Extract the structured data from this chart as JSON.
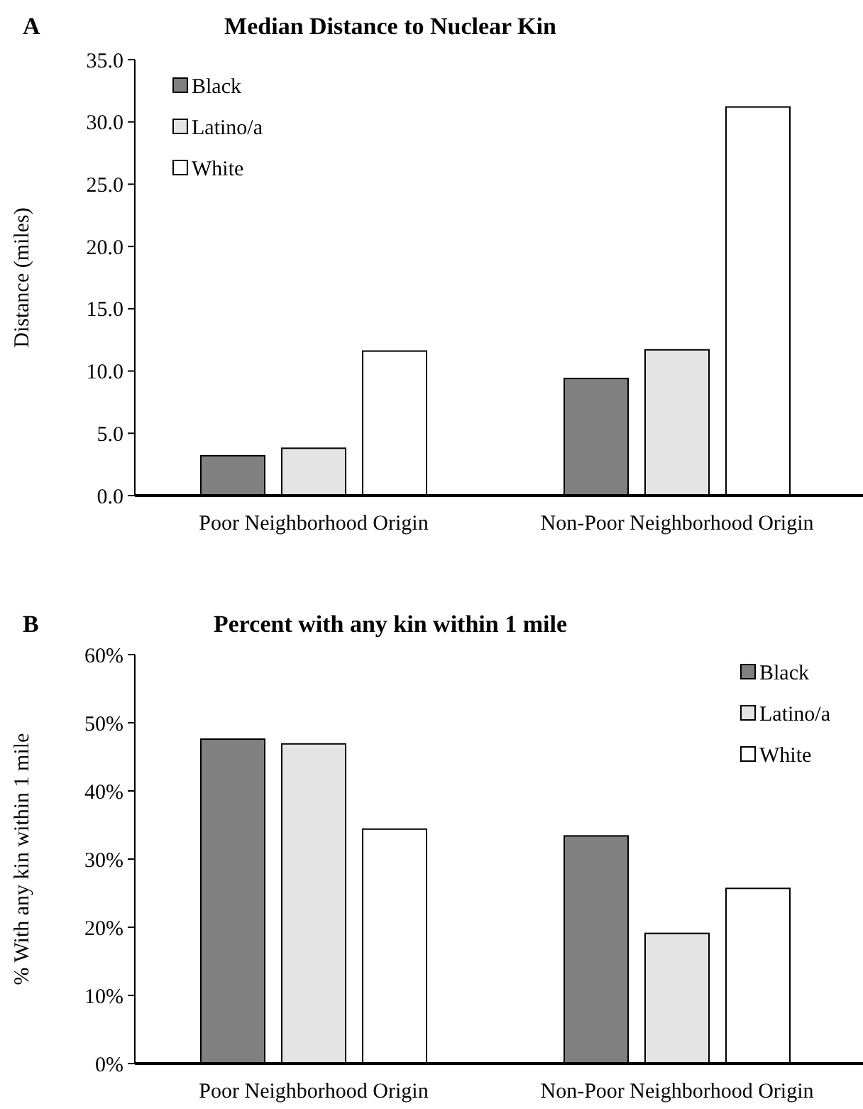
{
  "chart_data": [
    {
      "type": "bar",
      "title": "Median Distance to Nuclear Kin",
      "annotations": [
        "A"
      ],
      "ylabel": "Distance (miles)",
      "categories": [
        "Poor Neighborhood Origin",
        "Non-Poor Neighborhood Origin"
      ],
      "series": [
        {
          "name": "Black",
          "color": "#808080",
          "values": [
            3.2,
            9.4
          ]
        },
        {
          "name": "Latino/a",
          "color": "#e4e4e4",
          "values": [
            3.8,
            11.7
          ]
        },
        {
          "name": "White",
          "color": "#ffffff",
          "values": [
            11.6,
            31.2
          ]
        }
      ],
      "ylim": [
        0,
        35
      ],
      "yticks": [
        {
          "value": 0,
          "label": "0.0"
        },
        {
          "value": 5,
          "label": "5.0"
        },
        {
          "value": 10,
          "label": "10.0"
        },
        {
          "value": 15,
          "label": "15.0"
        },
        {
          "value": 20,
          "label": "20.0"
        },
        {
          "value": 25,
          "label": "25.0"
        },
        {
          "value": 30,
          "label": "30.0"
        },
        {
          "value": 35,
          "label": "35.0"
        }
      ],
      "legend": "top left",
      "grid": false
    },
    {
      "type": "bar",
      "title": "Percent with any kin within 1 mile",
      "annotations": [
        "B"
      ],
      "ylabel": "% With any kin within 1 mile",
      "categories": [
        "Poor Neighborhood Origin",
        "Non-Poor Neighborhood Origin"
      ],
      "series": [
        {
          "name": "Black",
          "color": "#808080",
          "values": [
            47.6,
            33.4
          ]
        },
        {
          "name": "Latino/a",
          "color": "#e4e4e4",
          "values": [
            46.9,
            19.1
          ]
        },
        {
          "name": "White",
          "color": "#ffffff",
          "values": [
            34.4,
            25.7
          ]
        }
      ],
      "ylim": [
        0,
        60
      ],
      "yticks": [
        {
          "value": 0,
          "label": "0%"
        },
        {
          "value": 10,
          "label": "10%"
        },
        {
          "value": 20,
          "label": "20%"
        },
        {
          "value": 30,
          "label": "30%"
        },
        {
          "value": 40,
          "label": "40%"
        },
        {
          "value": 50,
          "label": "50%"
        },
        {
          "value": 60,
          "label": "60%"
        }
      ],
      "legend": "top right",
      "grid": false
    }
  ]
}
